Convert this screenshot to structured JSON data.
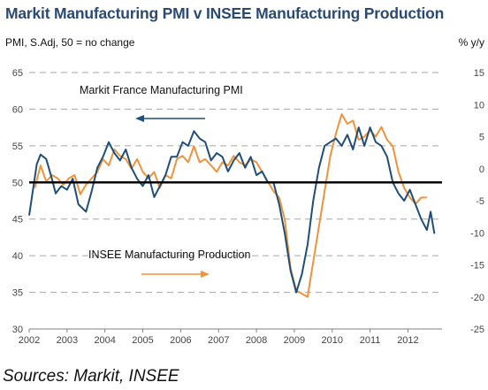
{
  "title": "Markit Manufacturing PMI v INSEE Manufacturing Production",
  "source": "Sources: Markit, INSEE",
  "colors": {
    "title": "#2a4a73",
    "pmi": "#1f4e79",
    "production": "#f0923a",
    "baseline": "#000000",
    "grid": "#a6a6a6"
  },
  "chart_data": {
    "type": "line",
    "left_axis_label": "PMI, S.Adj, 50 = no change",
    "right_axis_label": "% y/y",
    "left_ylim": [
      30,
      65
    ],
    "left_ticks": [
      "30",
      "35",
      "40",
      "45",
      "50",
      "55",
      "60",
      "65"
    ],
    "right_ylim": [
      -25,
      15
    ],
    "right_ticks": [
      "-25",
      "-20",
      "-15",
      "-10",
      "-5",
      "0",
      "5",
      "10",
      "15"
    ],
    "xlim": [
      2002,
      2012.9
    ],
    "x_ticks": [
      "2002",
      "2003",
      "2004",
      "2005",
      "2006",
      "2007",
      "2008",
      "2009",
      "2010",
      "2011",
      "2012"
    ],
    "grid": "dashed horizontal",
    "reference_line": 50,
    "annotations": [
      {
        "text": "Markit France Manufacturing PMI",
        "arrow": "left"
      },
      {
        "text": "INSEE Manufacturing Production",
        "arrow": "right"
      }
    ],
    "series": [
      {
        "name": "Markit France Manufacturing PMI",
        "axis": "left",
        "x": [
          2002.0,
          2002.1,
          2002.2,
          2002.3,
          2002.45,
          2002.6,
          2002.7,
          2002.85,
          2003.0,
          2003.15,
          2003.3,
          2003.5,
          2003.65,
          2003.8,
          2003.95,
          2004.1,
          2004.25,
          2004.4,
          2004.55,
          2004.7,
          2004.85,
          2005.0,
          2005.15,
          2005.3,
          2005.45,
          2005.6,
          2005.75,
          2005.9,
          2006.05,
          2006.2,
          2006.35,
          2006.5,
          2006.65,
          2006.8,
          2006.95,
          2007.1,
          2007.25,
          2007.4,
          2007.55,
          2007.7,
          2007.85,
          2008.0,
          2008.15,
          2008.3,
          2008.45,
          2008.6,
          2008.75,
          2008.9,
          2009.05,
          2009.2,
          2009.35,
          2009.5,
          2009.65,
          2009.8,
          2009.95,
          2010.1,
          2010.25,
          2010.4,
          2010.55,
          2010.7,
          2010.85,
          2011.0,
          2011.15,
          2011.3,
          2011.45,
          2011.6,
          2011.75,
          2011.9,
          2012.05,
          2012.2,
          2012.35,
          2012.5,
          2012.6,
          2012.7
        ],
        "values": [
          45.5,
          49.0,
          52.5,
          53.8,
          53.2,
          50.5,
          48.5,
          49.5,
          49.0,
          50.5,
          47.0,
          46.0,
          48.8,
          52.0,
          53.5,
          55.5,
          54.0,
          53.0,
          54.5,
          52.0,
          50.5,
          49.5,
          51.0,
          48.0,
          49.5,
          51.0,
          53.5,
          53.5,
          55.5,
          55.0,
          57.0,
          56.0,
          55.5,
          53.0,
          54.0,
          53.5,
          51.5,
          53.0,
          54.0,
          52.0,
          53.5,
          51.0,
          51.5,
          50.0,
          50.0,
          47.0,
          43.0,
          38.0,
          35.0,
          37.5,
          41.5,
          47.5,
          52.0,
          55.0,
          55.5,
          56.0,
          55.0,
          56.5,
          54.5,
          57.5,
          55.0,
          57.5,
          55.5,
          55.0,
          53.5,
          50.0,
          48.5,
          47.5,
          49.0,
          47.0,
          45.0,
          43.5,
          46.0,
          43.0
        ]
      },
      {
        "name": "INSEE Manufacturing Production",
        "axis": "right",
        "x": [
          2002.15,
          2002.3,
          2002.45,
          2002.6,
          2002.75,
          2002.9,
          2003.05,
          2003.2,
          2003.35,
          2003.5,
          2003.65,
          2003.8,
          2003.95,
          2004.1,
          2004.25,
          2004.4,
          2004.55,
          2004.7,
          2004.85,
          2005.0,
          2005.15,
          2005.3,
          2005.45,
          2005.6,
          2005.75,
          2005.9,
          2006.05,
          2006.2,
          2006.35,
          2006.5,
          2006.65,
          2006.8,
          2006.95,
          2007.1,
          2007.25,
          2007.4,
          2007.55,
          2007.7,
          2007.85,
          2008.0,
          2008.15,
          2008.3,
          2008.45,
          2008.6,
          2008.75,
          2008.9,
          2009.05,
          2009.2,
          2009.35,
          2009.5,
          2009.65,
          2009.8,
          2009.95,
          2010.1,
          2010.25,
          2010.4,
          2010.55,
          2010.7,
          2010.85,
          2011.0,
          2011.15,
          2011.3,
          2011.45,
          2011.6,
          2011.75,
          2011.9,
          2012.05,
          2012.2,
          2012.35,
          2012.5
        ],
        "values": [
          -3.0,
          0.5,
          -2.0,
          -1.0,
          -1.5,
          -2.5,
          -1.5,
          -1.0,
          -4.0,
          -2.5,
          -1.5,
          -0.5,
          1.5,
          0.5,
          3.0,
          2.0,
          1.5,
          0.0,
          1.5,
          -0.5,
          -1.5,
          -0.5,
          -3.0,
          -1.0,
          -1.5,
          1.5,
          2.0,
          1.0,
          3.5,
          1.0,
          1.5,
          0.5,
          -0.5,
          1.0,
          0.5,
          2.0,
          1.0,
          0.5,
          1.5,
          1.0,
          -0.5,
          -2.0,
          -3.5,
          -4.5,
          -8.0,
          -15.5,
          -19.0,
          -19.5,
          -20.0,
          -14.5,
          -9.0,
          -3.5,
          2.0,
          5.5,
          8.5,
          7.0,
          7.5,
          4.5,
          5.0,
          6.0,
          5.0,
          6.5,
          4.5,
          3.5,
          -0.5,
          -3.0,
          -4.5,
          -5.5,
          -4.5,
          -4.5
        ]
      }
    ]
  }
}
